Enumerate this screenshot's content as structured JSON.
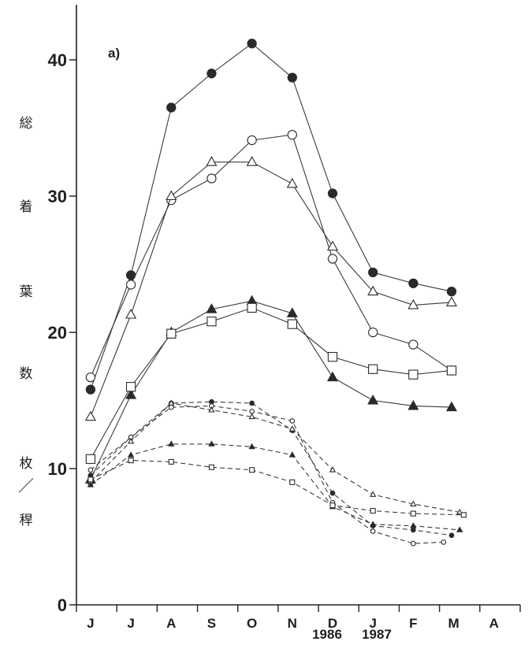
{
  "chart_data": {
    "type": "line",
    "panel_label": "a)",
    "ylabel_chars": [
      "総",
      "着",
      "葉",
      "数",
      "枚",
      "／",
      "稈"
    ],
    "y_ticks": [
      0,
      10,
      20,
      30,
      40
    ],
    "ylim": [
      0,
      44
    ],
    "x_tick_labels": [
      "J",
      "J",
      "A",
      "S",
      "O",
      "N",
      "D",
      "J",
      "F",
      "M",
      "A"
    ],
    "year_labels": [
      "1986",
      "1987"
    ],
    "xlim": [
      0,
      11
    ],
    "grid": false,
    "series": [
      {
        "marker": "filled-circle",
        "style": "solid",
        "x": [
          0.35,
          1.35,
          2.35,
          3.35,
          4.35,
          5.35,
          6.35,
          7.35,
          8.35,
          9.3
        ],
        "values": [
          15.8,
          24.2,
          36.5,
          39.0,
          41.2,
          38.7,
          30.2,
          24.4,
          23.6,
          23.0
        ]
      },
      {
        "marker": "open-circle",
        "style": "solid",
        "x": [
          0.35,
          1.35,
          2.35,
          3.35,
          4.35,
          5.35,
          6.35,
          7.35,
          8.35,
          9.3
        ],
        "values": [
          16.7,
          23.5,
          29.7,
          31.3,
          34.1,
          34.5,
          25.4,
          20.0,
          19.1,
          17.2
        ]
      },
      {
        "marker": "open-triangle",
        "style": "solid",
        "x": [
          0.35,
          1.35,
          2.35,
          3.35,
          4.35,
          5.35,
          6.35,
          7.35,
          8.35,
          9.3
        ],
        "values": [
          13.8,
          21.3,
          30.0,
          32.5,
          32.5,
          30.9,
          26.3,
          23.0,
          22.0,
          22.2
        ]
      },
      {
        "marker": "filled-triangle",
        "style": "solid",
        "x": [
          0.35,
          1.35,
          2.35,
          3.35,
          4.35,
          5.35,
          6.35,
          7.35,
          8.35,
          9.3
        ],
        "values": [
          9.2,
          15.4,
          20.0,
          21.7,
          22.3,
          21.4,
          16.7,
          15.0,
          14.6,
          14.5
        ]
      },
      {
        "marker": "open-square",
        "style": "solid",
        "x": [
          0.35,
          1.35,
          2.35,
          3.35,
          4.35,
          5.35,
          6.35,
          7.35,
          8.35,
          9.3
        ],
        "values": [
          10.7,
          16.0,
          19.9,
          20.8,
          21.8,
          20.6,
          18.2,
          17.3,
          16.9,
          17.2
        ]
      },
      {
        "marker": "small-filled-circle",
        "style": "dashed",
        "x": [
          0.35,
          1.35,
          2.35,
          3.35,
          4.35,
          5.35,
          6.35,
          7.35,
          8.35,
          9.3
        ],
        "values": [
          9.5,
          12.3,
          14.8,
          14.9,
          14.8,
          12.8,
          8.2,
          5.8,
          5.5,
          5.1
        ]
      },
      {
        "marker": "small-open-circle",
        "style": "dashed",
        "x": [
          0.35,
          1.35,
          2.35,
          3.35,
          4.35,
          5.35,
          6.35,
          7.35,
          8.35,
          9.1
        ],
        "values": [
          9.9,
          12.3,
          14.5,
          14.6,
          14.2,
          13.5,
          7.5,
          5.4,
          4.5,
          4.6
        ]
      },
      {
        "marker": "small-open-triangle",
        "style": "dashed",
        "x": [
          0.35,
          1.35,
          2.35,
          3.35,
          4.35,
          5.35,
          6.35,
          7.35,
          8.35,
          9.5
        ],
        "values": [
          9.0,
          12.0,
          14.8,
          14.3,
          13.8,
          12.9,
          9.9,
          8.1,
          7.4,
          6.8
        ]
      },
      {
        "marker": "small-filled-triangle",
        "style": "dashed",
        "x": [
          0.35,
          1.35,
          2.35,
          3.35,
          4.35,
          5.35,
          6.35,
          7.35,
          8.35,
          9.5
        ],
        "values": [
          8.8,
          11.0,
          11.8,
          11.8,
          11.6,
          11.0,
          7.2,
          5.9,
          5.8,
          5.5
        ]
      },
      {
        "marker": "small-open-square",
        "style": "dashed",
        "x": [
          0.35,
          1.35,
          2.35,
          3.35,
          4.35,
          5.35,
          6.35,
          7.35,
          8.35,
          9.6
        ],
        "values": [
          9.2,
          10.6,
          10.5,
          10.1,
          9.9,
          9.0,
          7.3,
          6.9,
          6.7,
          6.6
        ]
      }
    ]
  }
}
